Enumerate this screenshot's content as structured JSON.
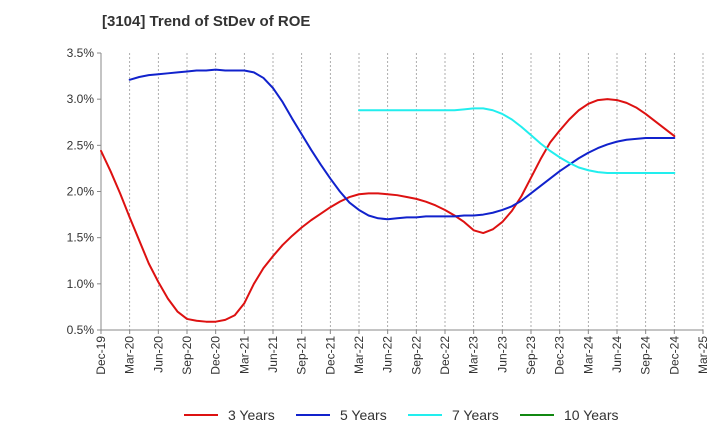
{
  "title": "[3104]  Trend of StDev of ROE",
  "chart_data": {
    "type": "line",
    "title": "[3104]  Trend of StDev of ROE",
    "xlabel": "",
    "ylabel": "",
    "x_tick_labels": [
      "Dec-19",
      "Mar-20",
      "Jun-20",
      "Sep-20",
      "Dec-20",
      "Mar-21",
      "Jun-21",
      "Sep-21",
      "Dec-21",
      "Mar-22",
      "Jun-22",
      "Sep-22",
      "Dec-22",
      "Mar-23",
      "Jun-23",
      "Sep-23",
      "Dec-23",
      "Mar-24",
      "Jun-24",
      "Sep-24",
      "Dec-24",
      "Mar-25"
    ],
    "y_tick_labels": [
      "0.5%",
      "1.0%",
      "1.5%",
      "2.0%",
      "2.5%",
      "3.0%",
      "3.5%"
    ],
    "ylim": [
      0.5,
      3.5
    ],
    "grid": "vertical dashed",
    "legend_position": "bottom",
    "series": [
      {
        "name": "3 Years",
        "color": "#dd1111",
        "points": [
          [
            "Dec-19",
            2.44
          ],
          [
            "Jan-20",
            2.22
          ],
          [
            "Feb-20",
            1.98
          ],
          [
            "Mar-20",
            1.72
          ],
          [
            "Apr-20",
            1.47
          ],
          [
            "May-20",
            1.22
          ],
          [
            "Jun-20",
            1.02
          ],
          [
            "Jul-20",
            0.84
          ],
          [
            "Aug-20",
            0.7
          ],
          [
            "Sep-20",
            0.62
          ],
          [
            "Oct-20",
            0.6
          ],
          [
            "Nov-20",
            0.59
          ],
          [
            "Dec-20",
            0.59
          ],
          [
            "Jan-21",
            0.61
          ],
          [
            "Feb-21",
            0.66
          ],
          [
            "Mar-21",
            0.79
          ],
          [
            "Apr-21",
            1.0
          ],
          [
            "May-21",
            1.17
          ],
          [
            "Jun-21",
            1.3
          ],
          [
            "Jul-21",
            1.42
          ],
          [
            "Aug-21",
            1.52
          ],
          [
            "Sep-21",
            1.61
          ],
          [
            "Oct-21",
            1.69
          ],
          [
            "Nov-21",
            1.76
          ],
          [
            "Dec-21",
            1.83
          ],
          [
            "Jan-22",
            1.89
          ],
          [
            "Feb-22",
            1.94
          ],
          [
            "Mar-22",
            1.97
          ],
          [
            "Apr-22",
            1.98
          ],
          [
            "May-22",
            1.98
          ],
          [
            "Jun-22",
            1.97
          ],
          [
            "Jul-22",
            1.96
          ],
          [
            "Aug-22",
            1.94
          ],
          [
            "Sep-22",
            1.92
          ],
          [
            "Oct-22",
            1.89
          ],
          [
            "Nov-22",
            1.85
          ],
          [
            "Dec-22",
            1.8
          ],
          [
            "Jan-23",
            1.74
          ],
          [
            "Feb-23",
            1.67
          ],
          [
            "Mar-23",
            1.58
          ],
          [
            "Apr-23",
            1.55
          ],
          [
            "May-23",
            1.59
          ],
          [
            "Jun-23",
            1.67
          ],
          [
            "Jul-23",
            1.79
          ],
          [
            "Aug-23",
            1.95
          ],
          [
            "Sep-23",
            2.15
          ],
          [
            "Oct-23",
            2.35
          ],
          [
            "Nov-23",
            2.53
          ],
          [
            "Dec-23",
            2.66
          ],
          [
            "Jan-24",
            2.78
          ],
          [
            "Feb-24",
            2.88
          ],
          [
            "Mar-24",
            2.95
          ],
          [
            "Apr-24",
            2.99
          ],
          [
            "May-24",
            3.0
          ],
          [
            "Jun-24",
            2.99
          ],
          [
            "Jul-24",
            2.96
          ],
          [
            "Aug-24",
            2.91
          ],
          [
            "Sep-24",
            2.84
          ],
          [
            "Oct-24",
            2.76
          ],
          [
            "Nov-24",
            2.68
          ],
          [
            "Dec-24",
            2.6
          ]
        ]
      },
      {
        "name": "5 Years",
        "color": "#1122cc",
        "points": [
          [
            "Mar-20",
            3.21
          ],
          [
            "Apr-20",
            3.24
          ],
          [
            "May-20",
            3.26
          ],
          [
            "Jun-20",
            3.27
          ],
          [
            "Jul-20",
            3.28
          ],
          [
            "Aug-20",
            3.29
          ],
          [
            "Sep-20",
            3.3
          ],
          [
            "Oct-20",
            3.31
          ],
          [
            "Nov-20",
            3.31
          ],
          [
            "Dec-20",
            3.32
          ],
          [
            "Jan-21",
            3.31
          ],
          [
            "Feb-21",
            3.31
          ],
          [
            "Mar-21",
            3.31
          ],
          [
            "Apr-21",
            3.29
          ],
          [
            "May-21",
            3.23
          ],
          [
            "Jun-21",
            3.12
          ],
          [
            "Jul-21",
            2.97
          ],
          [
            "Aug-21",
            2.79
          ],
          [
            "Sep-21",
            2.62
          ],
          [
            "Oct-21",
            2.45
          ],
          [
            "Nov-21",
            2.29
          ],
          [
            "Dec-21",
            2.14
          ],
          [
            "Jan-22",
            2.0
          ],
          [
            "Feb-22",
            1.88
          ],
          [
            "Mar-22",
            1.8
          ],
          [
            "Apr-22",
            1.74
          ],
          [
            "May-22",
            1.71
          ],
          [
            "Jun-22",
            1.7
          ],
          [
            "Jul-22",
            1.71
          ],
          [
            "Aug-22",
            1.72
          ],
          [
            "Sep-22",
            1.72
          ],
          [
            "Oct-22",
            1.73
          ],
          [
            "Nov-22",
            1.73
          ],
          [
            "Dec-22",
            1.73
          ],
          [
            "Jan-23",
            1.73
          ],
          [
            "Feb-23",
            1.74
          ],
          [
            "Mar-23",
            1.74
          ],
          [
            "Apr-23",
            1.75
          ],
          [
            "May-23",
            1.77
          ],
          [
            "Jun-23",
            1.8
          ],
          [
            "Jul-23",
            1.84
          ],
          [
            "Aug-23",
            1.9
          ],
          [
            "Sep-23",
            1.98
          ],
          [
            "Oct-23",
            2.06
          ],
          [
            "Nov-23",
            2.14
          ],
          [
            "Dec-23",
            2.22
          ],
          [
            "Jan-24",
            2.29
          ],
          [
            "Feb-24",
            2.36
          ],
          [
            "Mar-24",
            2.42
          ],
          [
            "Apr-24",
            2.47
          ],
          [
            "May-24",
            2.51
          ],
          [
            "Jun-24",
            2.54
          ],
          [
            "Jul-24",
            2.56
          ],
          [
            "Aug-24",
            2.57
          ],
          [
            "Sep-24",
            2.58
          ],
          [
            "Oct-24",
            2.58
          ],
          [
            "Nov-24",
            2.58
          ],
          [
            "Dec-24",
            2.58
          ]
        ]
      },
      {
        "name": "7 Years",
        "color": "#22eeee",
        "points": [
          [
            "Mar-22",
            2.88
          ],
          [
            "Apr-22",
            2.88
          ],
          [
            "May-22",
            2.88
          ],
          [
            "Jun-22",
            2.88
          ],
          [
            "Jul-22",
            2.88
          ],
          [
            "Aug-22",
            2.88
          ],
          [
            "Sep-22",
            2.88
          ],
          [
            "Oct-22",
            2.88
          ],
          [
            "Nov-22",
            2.88
          ],
          [
            "Dec-22",
            2.88
          ],
          [
            "Jan-23",
            2.88
          ],
          [
            "Feb-23",
            2.89
          ],
          [
            "Mar-23",
            2.9
          ],
          [
            "Apr-23",
            2.9
          ],
          [
            "May-23",
            2.88
          ],
          [
            "Jun-23",
            2.84
          ],
          [
            "Jul-23",
            2.78
          ],
          [
            "Aug-23",
            2.7
          ],
          [
            "Sep-23",
            2.61
          ],
          [
            "Oct-23",
            2.52
          ],
          [
            "Nov-23",
            2.44
          ],
          [
            "Dec-23",
            2.37
          ],
          [
            "Jan-24",
            2.31
          ],
          [
            "Feb-24",
            2.26
          ],
          [
            "Mar-24",
            2.23
          ],
          [
            "Apr-24",
            2.21
          ],
          [
            "May-24",
            2.2
          ],
          [
            "Jun-24",
            2.2
          ],
          [
            "Jul-24",
            2.2
          ],
          [
            "Aug-24",
            2.2
          ],
          [
            "Sep-24",
            2.2
          ],
          [
            "Oct-24",
            2.2
          ],
          [
            "Nov-24",
            2.2
          ],
          [
            "Dec-24",
            2.2
          ]
        ]
      },
      {
        "name": "10 Years",
        "color": "#118811",
        "points": []
      }
    ]
  }
}
